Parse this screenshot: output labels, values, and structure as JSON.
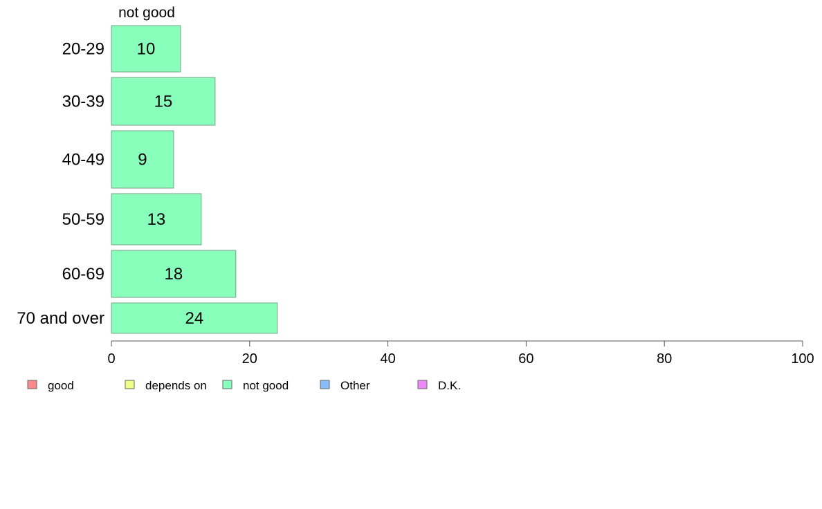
{
  "chart_data": {
    "type": "bar",
    "orientation": "horizontal",
    "column_header": "not good",
    "categories": [
      "20-29",
      "30-39",
      "40-49",
      "50-59",
      "60-69",
      "70 and over"
    ],
    "series": [
      {
        "name": "not good",
        "color": "#88FFBB",
        "values": [
          10,
          15,
          9,
          13,
          18,
          24
        ]
      }
    ],
    "xlim": [
      0,
      100
    ],
    "xticks": [
      0,
      20,
      40,
      60,
      80,
      100
    ],
    "grid": false,
    "legend_placement": "bottom-left",
    "legend": [
      {
        "label": "good",
        "color": "#F88A8A"
      },
      {
        "label": "depends on",
        "color": "#EEFF88"
      },
      {
        "label": "not good",
        "color": "#88FFBB"
      },
      {
        "label": "Other",
        "color": "#88BBF8"
      },
      {
        "label": "D.K.",
        "color": "#EE88F8"
      }
    ]
  }
}
